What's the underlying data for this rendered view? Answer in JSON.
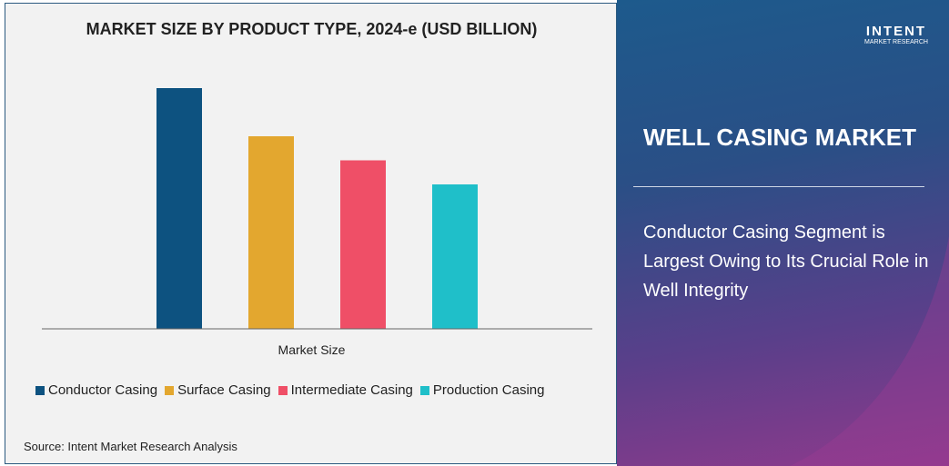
{
  "chart_data": {
    "type": "bar",
    "title": "MARKET SIZE BY PRODUCT TYPE, 2024-e (USD BILLION)",
    "xlabel": "Market Size",
    "ylabel": "",
    "categories": [
      "Market Size"
    ],
    "series": [
      {
        "name": "Conductor Casing",
        "values": [
          100
        ],
        "color": "#0d5280"
      },
      {
        "name": "Surface Casing",
        "values": [
          80
        ],
        "color": "#e3a72f"
      },
      {
        "name": "Intermediate Casing",
        "values": [
          70
        ],
        "color": "#ef4f67"
      },
      {
        "name": "Production Casing",
        "values": [
          60
        ],
        "color": "#1fbfc9"
      }
    ],
    "value_note_units": "relative",
    "grid": false,
    "legend_position": "bottom"
  },
  "source": "Source: Intent Market Research Analysis",
  "side": {
    "logo_brand": "INTENT",
    "logo_sub": "MARKET RESEARCH",
    "heading": "WELL CASING MARKET",
    "description": "Conductor Casing Segment is Largest Owing to Its Crucial Role in Well Integrity"
  }
}
